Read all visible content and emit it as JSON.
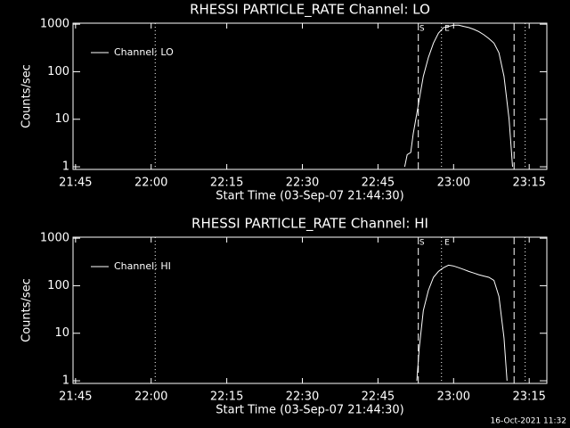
{
  "chart_data": [
    {
      "type": "line",
      "title": "RHESSI PARTICLE_RATE Channel: LO",
      "xlabel": "Start Time (03-Sep-07 21:44:30)",
      "ylabel": "Counts/sec",
      "log_y": true,
      "legend": "top-left",
      "xlim": [
        1304.5,
        1398.5
      ],
      "xticks": [
        {
          "value": 1305,
          "label": "21:45"
        },
        {
          "value": 1320,
          "label": "22:00"
        },
        {
          "value": 1335,
          "label": "22:15"
        },
        {
          "value": 1350,
          "label": "22:30"
        },
        {
          "value": 1365,
          "label": "22:45"
        },
        {
          "value": 1380,
          "label": "23:00"
        },
        {
          "value": 1395,
          "label": "23:15"
        }
      ],
      "ylim": [
        0.88,
        1050
      ],
      "yticks": [
        1,
        10,
        100,
        1000
      ],
      "x": [
        1370.3,
        1370.8,
        1371.5,
        1372,
        1373,
        1374,
        1375,
        1376,
        1377,
        1378,
        1379,
        1380,
        1381,
        1382,
        1383,
        1384,
        1385,
        1386,
        1387,
        1388,
        1389,
        1390,
        1391,
        1391.7
      ],
      "series": [
        {
          "name": "Channel: LO",
          "color": "#ffffff",
          "values": [
            1,
            1.8,
            2,
            5,
            20,
            80,
            200,
            400,
            650,
            850,
            900,
            950,
            950,
            900,
            850,
            780,
            700,
            600,
            500,
            400,
            250,
            80,
            10,
            1
          ]
        }
      ],
      "markers": [
        {
          "value": 1320.8,
          "style": "dotted"
        },
        {
          "value": 1373,
          "style": "dashed"
        },
        {
          "value": 1377.6,
          "style": "dotted"
        },
        {
          "value": 1392,
          "style": "dashed"
        },
        {
          "value": 1394.2,
          "style": "dotted"
        }
      ],
      "annotations": [
        {
          "text": "S",
          "x": 1373
        },
        {
          "text": "E",
          "x": 1378
        }
      ]
    },
    {
      "type": "line",
      "title": "RHESSI PARTICLE_RATE Channel: HI",
      "xlabel": "Start Time (03-Sep-07 21:44:30)",
      "ylabel": "Counts/sec",
      "log_y": true,
      "legend": "top-left",
      "xlim": [
        1304.5,
        1398.5
      ],
      "xticks": [
        {
          "value": 1305,
          "label": "21:45"
        },
        {
          "value": 1320,
          "label": "22:00"
        },
        {
          "value": 1335,
          "label": "22:15"
        },
        {
          "value": 1350,
          "label": "22:30"
        },
        {
          "value": 1365,
          "label": "22:45"
        },
        {
          "value": 1380,
          "label": "23:00"
        },
        {
          "value": 1395,
          "label": "23:15"
        }
      ],
      "ylim": [
        0.88,
        1050
      ],
      "yticks": [
        1,
        10,
        100,
        1000
      ],
      "x": [
        1372.7,
        1373.2,
        1374,
        1375,
        1376,
        1377,
        1378,
        1379,
        1380,
        1381,
        1382,
        1383,
        1384,
        1385,
        1386,
        1387,
        1388,
        1389,
        1390,
        1390.6
      ],
      "series": [
        {
          "name": "Channel: HI",
          "color": "#ffffff",
          "values": [
            1,
            5,
            30,
            80,
            150,
            200,
            240,
            270,
            260,
            240,
            220,
            200,
            185,
            170,
            160,
            150,
            130,
            60,
            8,
            1
          ]
        }
      ],
      "markers": [
        {
          "value": 1320.8,
          "style": "dotted"
        },
        {
          "value": 1373,
          "style": "dashed"
        },
        {
          "value": 1377.6,
          "style": "dotted"
        },
        {
          "value": 1392,
          "style": "dashed"
        },
        {
          "value": 1394.2,
          "style": "dotted"
        }
      ],
      "annotations": [
        {
          "text": "S",
          "x": 1373
        },
        {
          "text": "E",
          "x": 1378
        }
      ]
    }
  ],
  "footer": "16-Oct-2021 11:32"
}
